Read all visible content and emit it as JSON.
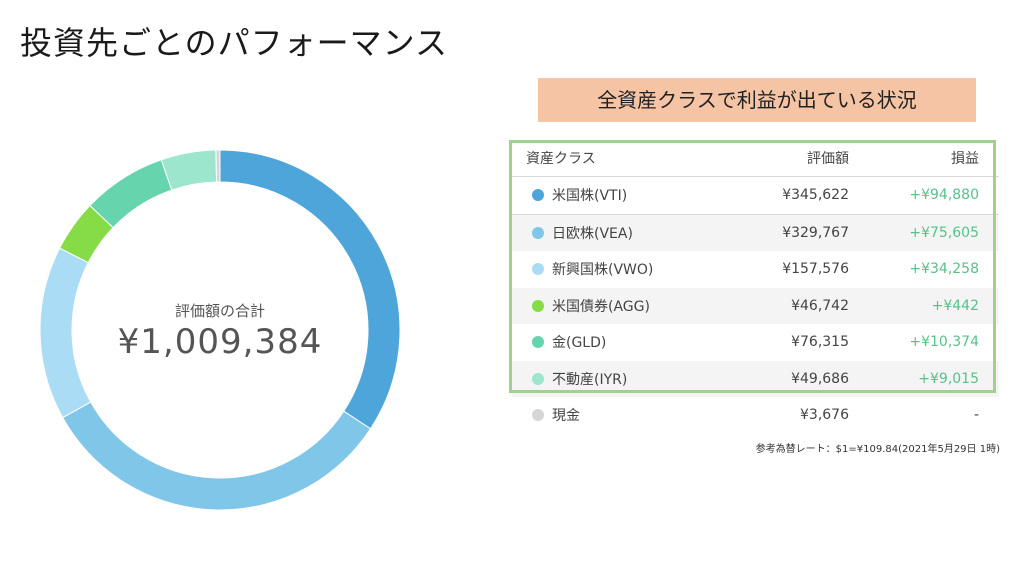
{
  "page": {
    "title": "投資先ごとのパフォーマンス",
    "callout": "全資産クラスで利益が出ている状況",
    "note": "参考為替レート：$1=¥109.84(2021年5月29日 1時)"
  },
  "donut": {
    "center_label": "評価額の合計",
    "center_value": "¥1,009,384"
  },
  "table": {
    "headers": {
      "name": "資産クラス",
      "value": "評価額",
      "gain": "損益"
    },
    "rows": [
      {
        "name": "米国株(VTI)",
        "value": "¥345,622",
        "gain": "+¥94,880",
        "color": "#4ea5da"
      },
      {
        "name": "日欧株(VEA)",
        "value": "¥329,767",
        "gain": "+¥75,605",
        "color": "#7fc6e8"
      },
      {
        "name": "新興国株(VWO)",
        "value": "¥157,576",
        "gain": "+¥34,258",
        "color": "#aadcf5"
      },
      {
        "name": "米国債券(AGG)",
        "value": "¥46,742",
        "gain": "+¥442",
        "color": "#86dc46"
      },
      {
        "name": "金(GLD)",
        "value": "¥76,315",
        "gain": "+¥10,374",
        "color": "#66d4ad"
      },
      {
        "name": "不動産(IYR)",
        "value": "¥49,686",
        "gain": "+¥9,015",
        "color": "#9be6cc"
      },
      {
        "name": "現金",
        "value": "¥3,676",
        "gain": "-",
        "color": "#d6d6d6"
      }
    ]
  },
  "chart_data": {
    "type": "pie",
    "donut": true,
    "categories": [
      "米国株(VTI)",
      "日欧株(VEA)",
      "新興国株(VWO)",
      "米国債券(AGG)",
      "金(GLD)",
      "不動産(IYR)",
      "現金"
    ],
    "values": [
      345622,
      329767,
      157576,
      46742,
      76315,
      49686,
      3676
    ],
    "colors": [
      "#4ea5da",
      "#7fc6e8",
      "#aadcf5",
      "#86dc46",
      "#66d4ad",
      "#9be6cc",
      "#d6d6d6"
    ]
  }
}
